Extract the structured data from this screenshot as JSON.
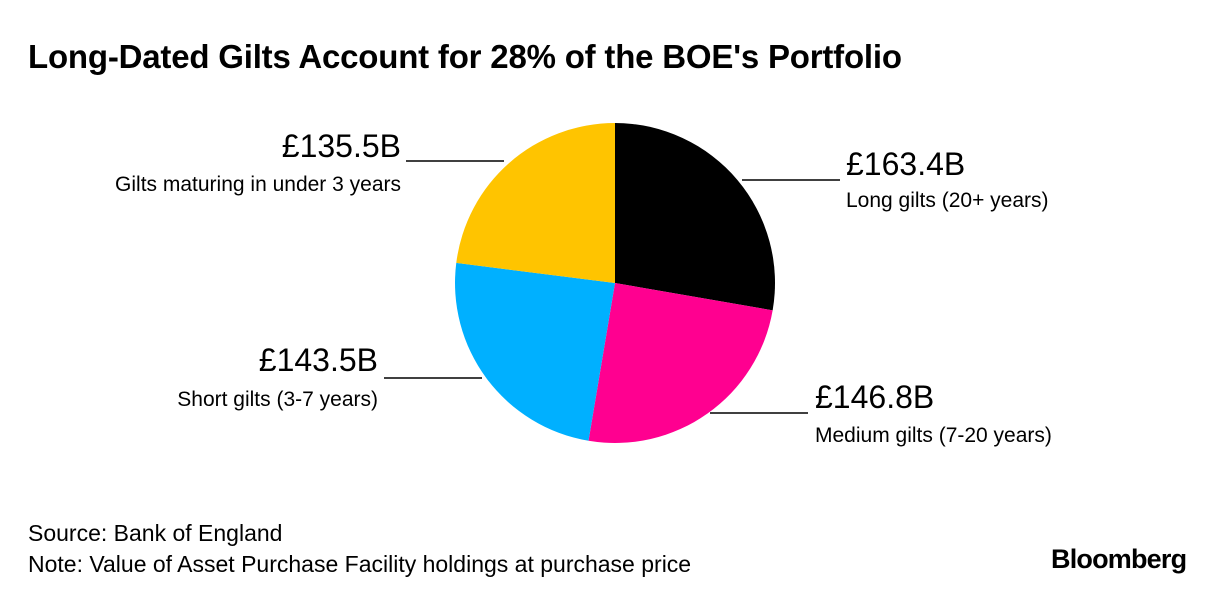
{
  "chart_data": {
    "type": "pie",
    "title": "Long-Dated Gilts Account for 28% of the BOE's Portfolio",
    "unit": "£ billions",
    "slices": [
      {
        "label": "Long gilts (20+ years)",
        "value": 163.4,
        "display": "£163.4B",
        "color": "#000000"
      },
      {
        "label": "Medium gilts (7-20 years)",
        "value": 146.8,
        "display": "£146.8B",
        "color": "#ff0090"
      },
      {
        "label": "Short gilts (3-7 years)",
        "value": 143.5,
        "display": "£143.5B",
        "color": "#00b0ff"
      },
      {
        "label": "Gilts maturing in under 3 years",
        "value": 135.5,
        "display": "£135.5B",
        "color": "#ffc400"
      }
    ]
  },
  "footer": {
    "source": "Source: Bank of England",
    "note": "Note: Value of Asset Purchase Facility holdings at purchase price"
  },
  "brand": "Bloomberg"
}
